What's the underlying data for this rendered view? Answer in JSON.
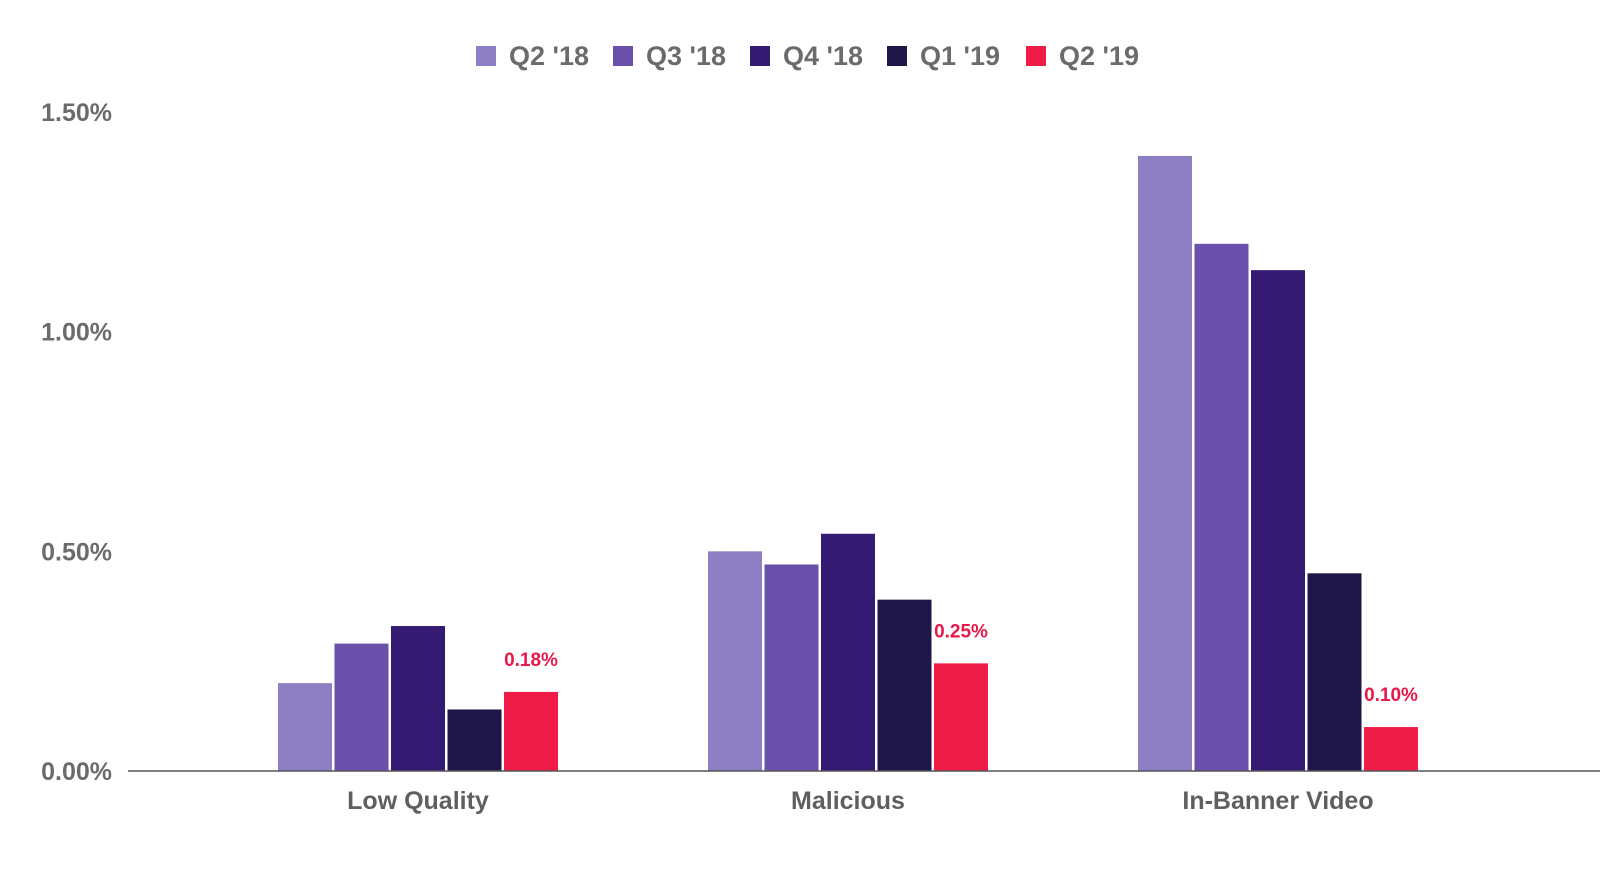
{
  "chart_data": {
    "type": "bar",
    "title": "",
    "xlabel": "",
    "ylabel": "",
    "ylim": [
      0,
      1.5
    ],
    "y_ticks": [
      {
        "value": 0.0,
        "label": "0.00%"
      },
      {
        "value": 0.5,
        "label": "0.50%"
      },
      {
        "value": 1.0,
        "label": "1.00%"
      },
      {
        "value": 1.5,
        "label": "1.50%"
      }
    ],
    "grid": false,
    "legend_position": "top-center",
    "categories": [
      "Low Quality",
      "Malicious",
      "In-Banner Video"
    ],
    "series": [
      {
        "name": "Q2 '18",
        "color": "#8e7fc4",
        "values": [
          0.2,
          0.5,
          1.4
        ]
      },
      {
        "name": "Q3 '18",
        "color": "#6a4fab",
        "values": [
          0.29,
          0.47,
          1.2
        ]
      },
      {
        "name": "Q4 '18",
        "color": "#341a72",
        "values": [
          0.33,
          0.54,
          1.14
        ]
      },
      {
        "name": "Q1 '19",
        "color": "#1e1548",
        "values": [
          0.14,
          0.39,
          0.45
        ]
      },
      {
        "name": "Q2 '19",
        "color": "#ee1c47",
        "values": [
          0.18,
          0.245,
          0.1
        ]
      }
    ],
    "data_labels": [
      {
        "series": 4,
        "category": 0,
        "text": "0.18%"
      },
      {
        "series": 4,
        "category": 1,
        "text": "0.25%"
      },
      {
        "series": 4,
        "category": 2,
        "text": "0.10%"
      }
    ]
  }
}
